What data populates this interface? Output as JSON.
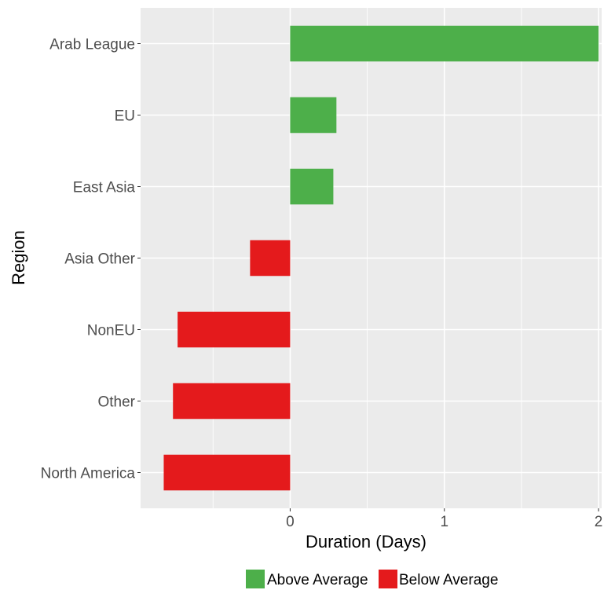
{
  "chart_data": {
    "type": "bar",
    "orientation": "horizontal",
    "title": "",
    "xlabel": "Duration (Days)",
    "ylabel": "Region",
    "xlim": [
      -0.97,
      2.02
    ],
    "xticks": [
      0,
      1,
      2
    ],
    "grid": true,
    "legend_position": "bottom",
    "categories": [
      "Arab League",
      "EU",
      "East Asia",
      "Asia Other",
      "NonEU",
      "Other",
      "North America"
    ],
    "values": [
      2.0,
      0.3,
      0.28,
      -0.26,
      -0.73,
      -0.76,
      -0.82
    ],
    "groups": [
      "Above Average",
      "Above Average",
      "Above Average",
      "Below Average",
      "Below Average",
      "Below Average",
      "Below Average"
    ],
    "legend": [
      {
        "label": "Above Average",
        "color": "#4daf4a"
      },
      {
        "label": "Below Average",
        "color": "#e41a1c"
      }
    ]
  }
}
